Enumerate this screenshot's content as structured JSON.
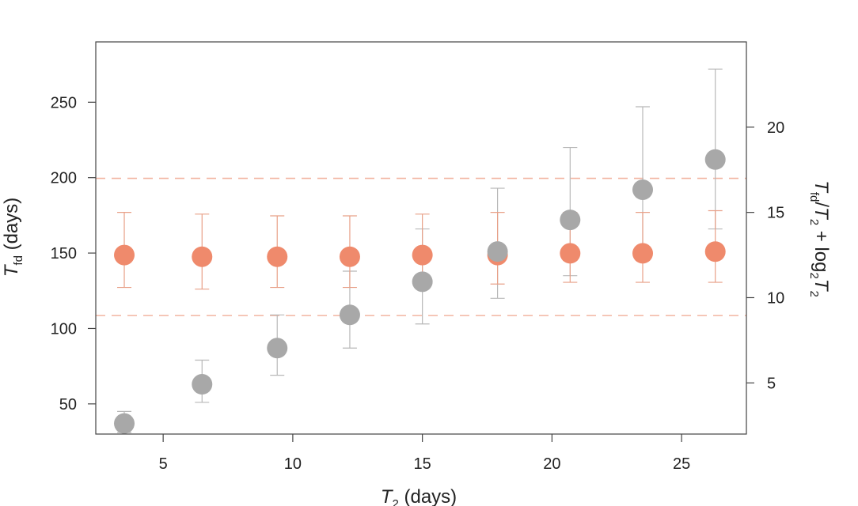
{
  "chart_data": {
    "type": "scatter",
    "title": "",
    "xlabel": "T₂ (days)",
    "xlabel_main": "T",
    "xlabel_sub": "2",
    "xlabel_unit": " (days)",
    "ylabel": "T_fd (days)",
    "ylabel_main": "T",
    "ylabel_sub": "fd",
    "ylabel_unit": " (days)",
    "y2label": "T_fd/T₂ + log₂T₂",
    "y2label_parts": {
      "t1": "T",
      "s1": "fd",
      "slash": "/",
      "t2": "T",
      "s2": "2",
      "plus": " + log",
      "s3": "2",
      "t3": "T",
      "s4": "2"
    },
    "xlim": [
      2.4,
      27.5
    ],
    "ylim": [
      30,
      290
    ],
    "y2lim": [
      2.0,
      25.0
    ],
    "xticks": [
      5,
      10,
      15,
      20,
      25
    ],
    "yticks": [
      50,
      100,
      150,
      200,
      250
    ],
    "y2ticks": [
      5,
      10,
      15,
      20
    ],
    "grid": false,
    "reference_lines": {
      "axis": "right",
      "values": [
        8.95,
        17.0
      ],
      "style": "dashed",
      "color": "#f2b4a0"
    },
    "series": [
      {
        "axis": "left",
        "color": "#a8a8a8",
        "errorbar_color": "#b8b8b8",
        "points": [
          {
            "x": 3.5,
            "y": 37,
            "lo": 31,
            "hi": 45
          },
          {
            "x": 6.5,
            "y": 63,
            "lo": 51,
            "hi": 79
          },
          {
            "x": 9.4,
            "y": 87,
            "lo": 69,
            "hi": 109
          },
          {
            "x": 12.2,
            "y": 109,
            "lo": 87,
            "hi": 138
          },
          {
            "x": 15.0,
            "y": 131,
            "lo": 103,
            "hi": 166
          },
          {
            "x": 17.9,
            "y": 151,
            "lo": 120,
            "hi": 193
          },
          {
            "x": 20.7,
            "y": 172,
            "lo": 135,
            "hi": 220
          },
          {
            "x": 23.5,
            "y": 192,
            "lo": 150,
            "hi": 247
          },
          {
            "x": 26.3,
            "y": 212,
            "lo": 166,
            "hi": 272
          }
        ]
      },
      {
        "axis": "right",
        "color": "#ef8a6c",
        "errorbar_color": "#e8a088",
        "points": [
          {
            "x": 3.5,
            "y": 12.5,
            "lo": 10.6,
            "hi": 15.0
          },
          {
            "x": 6.5,
            "y": 12.4,
            "lo": 10.5,
            "hi": 14.9
          },
          {
            "x": 9.4,
            "y": 12.4,
            "lo": 10.6,
            "hi": 14.8
          },
          {
            "x": 12.2,
            "y": 12.4,
            "lo": 10.6,
            "hi": 14.8
          },
          {
            "x": 15.0,
            "y": 12.5,
            "lo": 10.8,
            "hi": 14.9
          },
          {
            "x": 17.9,
            "y": 12.5,
            "lo": 10.8,
            "hi": 15.0
          },
          {
            "x": 20.7,
            "y": 12.6,
            "lo": 10.9,
            "hi": 15.0
          },
          {
            "x": 23.5,
            "y": 12.6,
            "lo": 10.9,
            "hi": 15.0
          },
          {
            "x": 26.3,
            "y": 12.7,
            "lo": 10.9,
            "hi": 15.1
          }
        ]
      }
    ]
  }
}
